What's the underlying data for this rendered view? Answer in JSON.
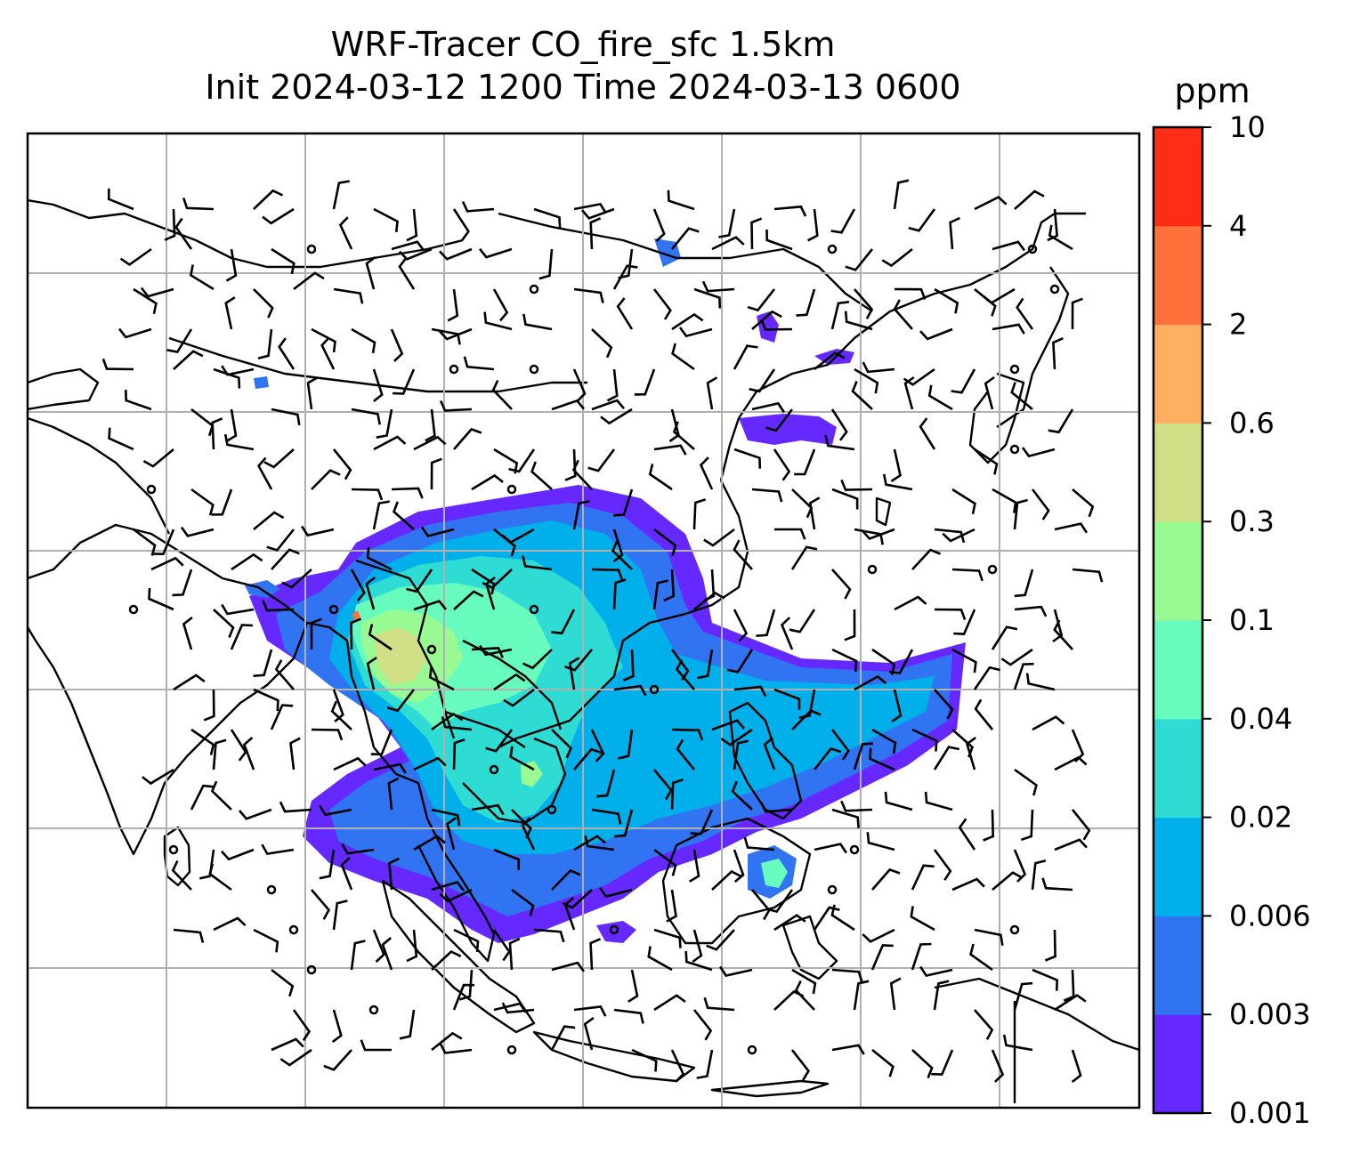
{
  "title": {
    "line1": "WRF-Tracer CO_fire_sfc 1.5km",
    "line2": "Init 2024-03-12 1200 Time 2024-03-13 0600"
  },
  "colorbar": {
    "unit": "ppm",
    "levels": [
      "0.001",
      "0.003",
      "0.006",
      "0.02",
      "0.04",
      "0.1",
      "0.3",
      "0.6",
      "2",
      "4",
      "10"
    ],
    "colors": [
      "#6529ff",
      "#3174f2",
      "#01b0ea",
      "#2fdcd4",
      "#67fcbe",
      "#99f993",
      "#d1e086",
      "#ffaf5f",
      "#ff713b",
      "#ff2c16"
    ]
  },
  "map": {
    "gridlines": true,
    "coastline_color": "#000000",
    "grid_color": "#b0b0b0"
  }
}
